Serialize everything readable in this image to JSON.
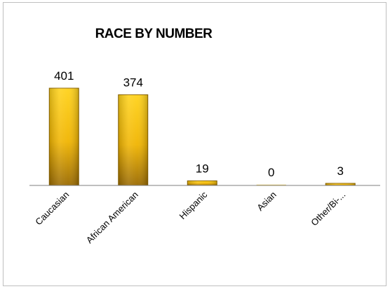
{
  "chart_data": {
    "type": "bar",
    "title": "RACE BY NUMBER",
    "categories": [
      "Caucasian",
      "African American",
      "Hispanic",
      "Asian",
      "Other/Bi-..."
    ],
    "values": [
      401,
      374,
      19,
      0,
      3
    ],
    "data_labels": [
      "401",
      "374",
      "19",
      "0",
      "3"
    ],
    "xlabel": "",
    "ylabel": "",
    "ylim": [
      0,
      420
    ],
    "grid": false,
    "legend": "none",
    "colors": {
      "bar_top": "#ffd21a",
      "bar_mid": "#f0b400",
      "bar_bottom": "#9a6a00",
      "bar_edge": "#8c6400",
      "axis": "#7f7f7f",
      "frame": "#bfbfbf"
    }
  }
}
